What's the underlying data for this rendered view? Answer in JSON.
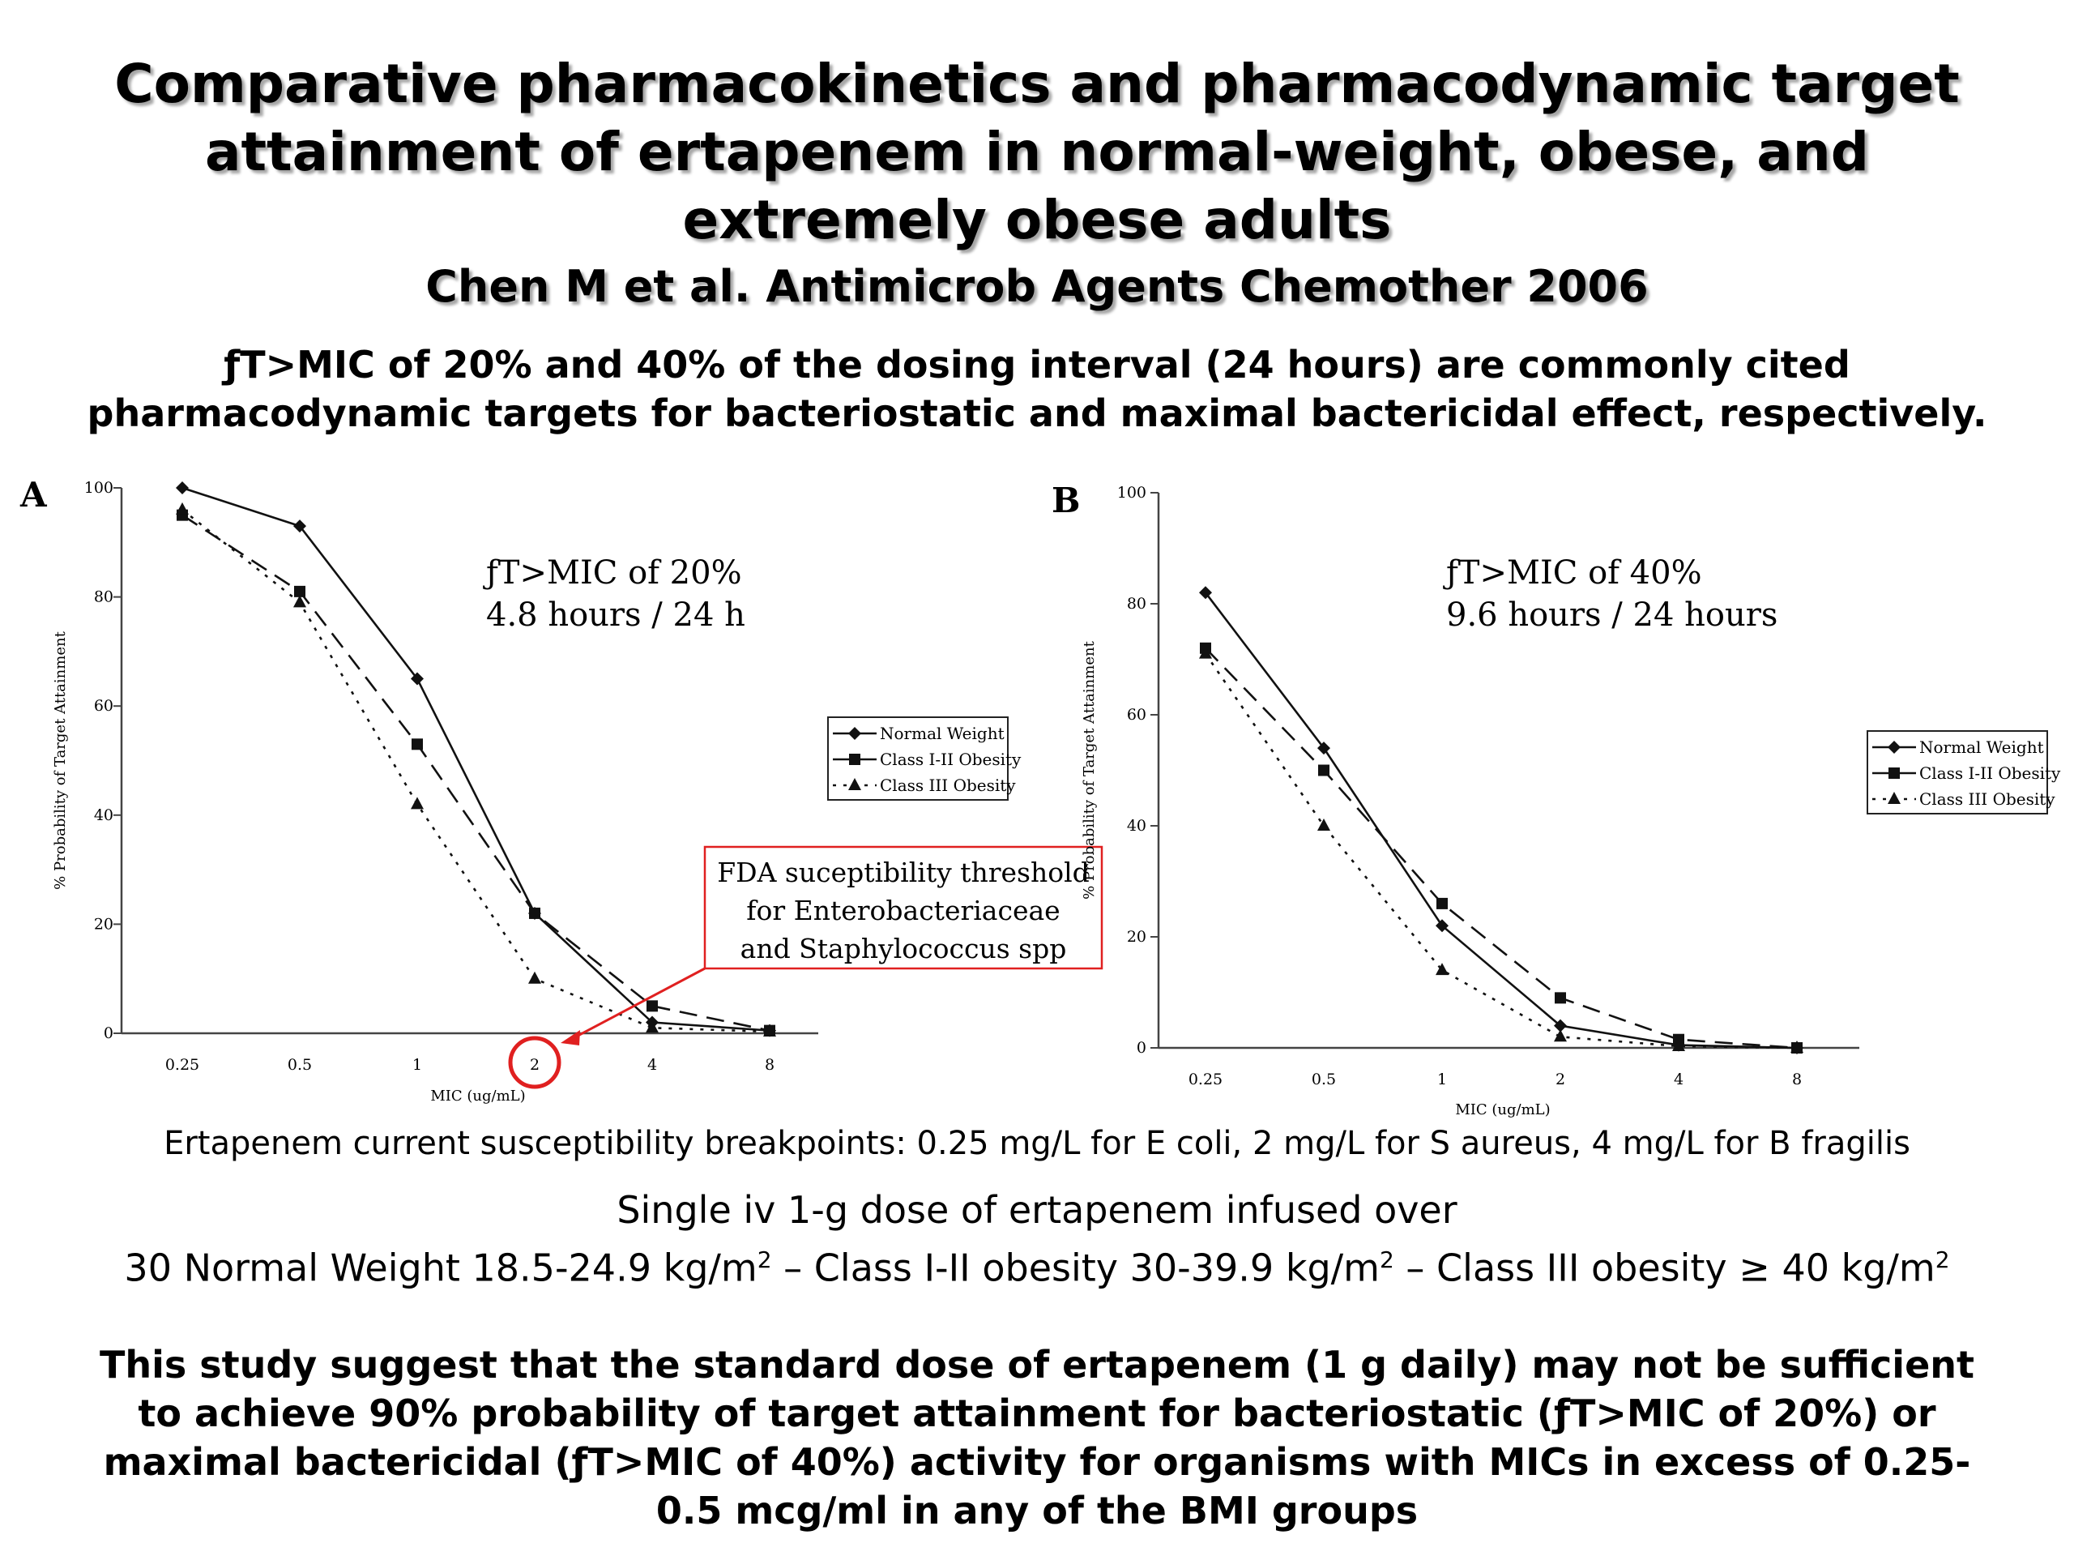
{
  "title": "Comparative pharmacokinetics and pharmacodynamic target attainment of ertapenem in normal-weight, obese, and extremely obese adults",
  "citation": "Chen M et al. Antimicrob Agents Chemother 2006",
  "intro": "ƒT>MIC of 20% and 40% of the dosing interval (24 hours) are commonly cited pharmacodynamic targets for bacteriostatic and maximal bactericidal effect, respectively.",
  "breakpoints": "Ertapenem current susceptibility breakpoints: 0.25 mg/L for E coli, 2 mg/L for S aureus, 4 mg/L for B fragilis",
  "dose": {
    "line1": "Single iv 1-g dose of ertapenem infused over",
    "line2_a": "30 Normal Weight 18.5-24.9 kg/m",
    "line2_b": " – Class I-II obesity 30-39.9 kg/m",
    "line2_c": " – Class III obesity ≥ 40 kg/m",
    "sup": "2"
  },
  "conclusion": "This study suggest that the standard dose of ertapenem (1 g daily) may not be sufficient to achieve 90% probability of target attainment for bacteriostatic (ƒT>MIC of 20%) or maximal bactericidal (ƒT>MIC of 40%) activity for organisms with MICs in excess of 0.25-0.5 mcg/ml in any of the BMI groups",
  "colors": {
    "highlight": "#e02020",
    "annotation_border": "#e02020"
  },
  "chart_data": [
    {
      "type": "line",
      "panel_label": "A",
      "annotation": [
        "ƒT>MIC of 20%",
        "4.8 hours / 24 h"
      ],
      "xlabel": "MIC (ug/mL)",
      "ylabel": "% Probability of Target Attainment",
      "categories": [
        "0.25",
        "0.5",
        "1",
        "2",
        "4",
        "8"
      ],
      "yticks": [
        "0",
        "20",
        "40",
        "60",
        "80",
        "100"
      ],
      "ylim": [
        0,
        100
      ],
      "legend_position": "right",
      "series": [
        {
          "name": "Normal Weight",
          "style": "solid",
          "marker": "diamond",
          "values": [
            100,
            93,
            65,
            22,
            2,
            0.5
          ]
        },
        {
          "name": "Class I-II Obesity",
          "style": "dashed",
          "marker": "square",
          "values": [
            95,
            81,
            53,
            22,
            5,
            0.5
          ]
        },
        {
          "name": "Class III Obesity",
          "style": "dotted",
          "marker": "triangle",
          "values": [
            96,
            79,
            42,
            10,
            1,
            0.3
          ]
        }
      ],
      "callout": {
        "lines": [
          "FDA suceptibility threshold",
          "for Enterobacteriaceae",
          "and Staphylococcus spp"
        ],
        "points_to": "2"
      }
    },
    {
      "type": "line",
      "panel_label": "B",
      "annotation": [
        "ƒT>MIC of 40%",
        "9.6 hours / 24 hours"
      ],
      "xlabel": "MIC (ug/mL)",
      "ylabel": "% Probability of Target Attainment",
      "categories": [
        "0.25",
        "0.5",
        "1",
        "2",
        "4",
        "8"
      ],
      "yticks": [
        "0",
        "20",
        "40",
        "60",
        "80",
        "100"
      ],
      "ylim": [
        0,
        100
      ],
      "legend_position": "right",
      "series": [
        {
          "name": "Normal Weight",
          "style": "solid",
          "marker": "diamond",
          "values": [
            82,
            54,
            22,
            4,
            0.5,
            0
          ]
        },
        {
          "name": "Class I-II Obesity",
          "style": "dashed",
          "marker": "square",
          "values": [
            72,
            50,
            26,
            9,
            1.5,
            0
          ]
        },
        {
          "name": "Class III Obesity",
          "style": "dotted",
          "marker": "triangle",
          "values": [
            71,
            40,
            14,
            2,
            0.3,
            0
          ]
        }
      ]
    }
  ]
}
